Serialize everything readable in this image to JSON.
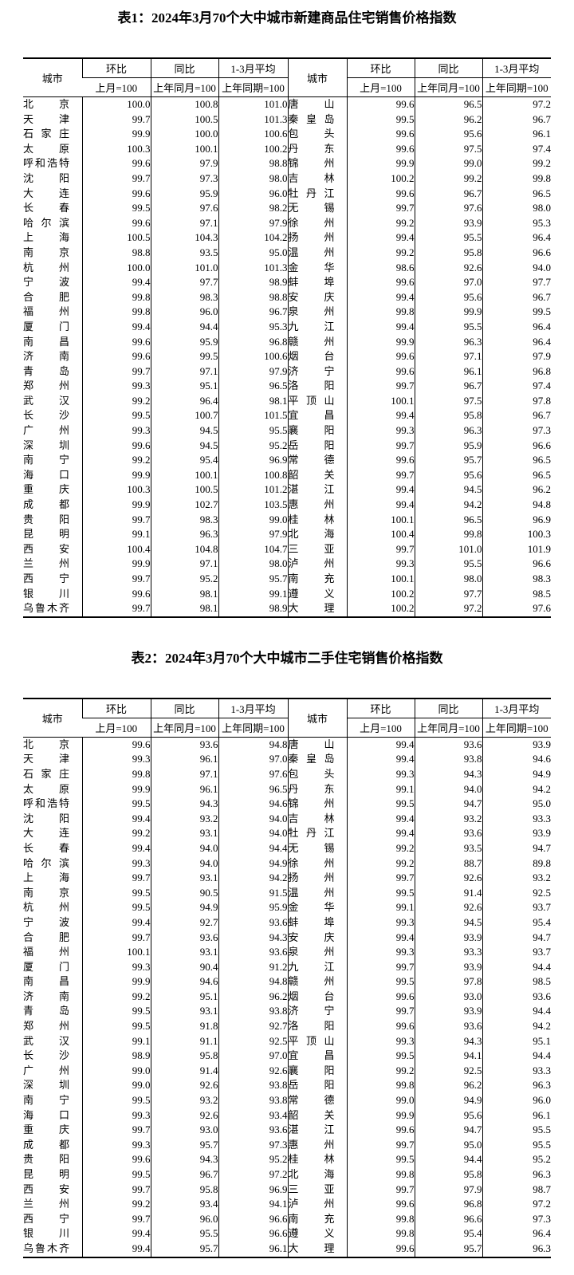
{
  "page": {
    "background_color": "#ffffff",
    "text_color": "#000000"
  },
  "tables": [
    {
      "title": "表1：2024年3月70个大中城市新建商品住宅销售价格指数",
      "header": {
        "city": "城市",
        "mom": "环比",
        "mom_base": "上月=100",
        "yoy": "同比",
        "yoy_base": "上年同月=100",
        "avg": "1-3月平均",
        "avg_base": "上年同期=100"
      },
      "rows": [
        [
          "北京",
          "100.0",
          "100.8",
          "101.0",
          "唐山",
          "99.6",
          "96.5",
          "97.2"
        ],
        [
          "天津",
          "99.7",
          "100.5",
          "101.3",
          "秦皇岛",
          "99.5",
          "96.2",
          "96.7"
        ],
        [
          "石家庄",
          "99.9",
          "100.0",
          "100.6",
          "包头",
          "99.6",
          "95.6",
          "96.1"
        ],
        [
          "太原",
          "100.3",
          "100.1",
          "100.2",
          "丹东",
          "99.6",
          "97.5",
          "97.4"
        ],
        [
          "呼和浩特",
          "99.6",
          "97.9",
          "98.8",
          "锦州",
          "99.9",
          "99.0",
          "99.2"
        ],
        [
          "沈阳",
          "99.7",
          "97.3",
          "98.0",
          "吉林",
          "100.2",
          "99.2",
          "99.8"
        ],
        [
          "大连",
          "99.6",
          "95.9",
          "96.0",
          "牡丹江",
          "99.6",
          "96.7",
          "96.5"
        ],
        [
          "长春",
          "99.5",
          "97.6",
          "98.2",
          "无锡",
          "99.7",
          "97.6",
          "98.0"
        ],
        [
          "哈尔滨",
          "99.6",
          "97.1",
          "97.9",
          "徐州",
          "99.2",
          "93.9",
          "95.3"
        ],
        [
          "上海",
          "100.5",
          "104.3",
          "104.2",
          "扬州",
          "99.4",
          "95.5",
          "96.4"
        ],
        [
          "南京",
          "98.8",
          "93.5",
          "95.0",
          "温州",
          "99.2",
          "95.8",
          "96.6"
        ],
        [
          "杭州",
          "100.0",
          "101.0",
          "101.3",
          "金华",
          "98.6",
          "92.6",
          "94.0"
        ],
        [
          "宁波",
          "99.4",
          "97.7",
          "98.9",
          "蚌埠",
          "99.6",
          "97.0",
          "97.7"
        ],
        [
          "合肥",
          "99.8",
          "98.3",
          "98.8",
          "安庆",
          "99.4",
          "95.6",
          "96.7"
        ],
        [
          "福州",
          "99.8",
          "96.0",
          "96.7",
          "泉州",
          "99.8",
          "99.9",
          "99.5"
        ],
        [
          "厦门",
          "99.4",
          "94.4",
          "95.3",
          "九江",
          "99.4",
          "95.5",
          "96.4"
        ],
        [
          "南昌",
          "99.6",
          "95.9",
          "96.8",
          "赣州",
          "99.9",
          "96.3",
          "96.4"
        ],
        [
          "济南",
          "99.6",
          "99.5",
          "100.6",
          "烟台",
          "99.6",
          "97.1",
          "97.9"
        ],
        [
          "青岛",
          "99.7",
          "97.1",
          "97.9",
          "济宁",
          "99.6",
          "96.1",
          "96.8"
        ],
        [
          "郑州",
          "99.3",
          "95.1",
          "96.5",
          "洛阳",
          "99.7",
          "96.7",
          "97.4"
        ],
        [
          "武汉",
          "99.2",
          "96.4",
          "98.1",
          "平顶山",
          "100.1",
          "97.5",
          "97.8"
        ],
        [
          "长沙",
          "99.5",
          "100.7",
          "101.5",
          "宜昌",
          "99.4",
          "95.8",
          "96.7"
        ],
        [
          "广州",
          "99.3",
          "94.5",
          "95.5",
          "襄阳",
          "99.3",
          "96.3",
          "97.3"
        ],
        [
          "深圳",
          "99.6",
          "94.5",
          "95.2",
          "岳阳",
          "99.7",
          "95.9",
          "96.6"
        ],
        [
          "南宁",
          "99.2",
          "95.4",
          "96.9",
          "常德",
          "99.6",
          "95.7",
          "96.5"
        ],
        [
          "海口",
          "99.9",
          "100.1",
          "100.8",
          "韶关",
          "99.7",
          "95.6",
          "96.5"
        ],
        [
          "重庆",
          "100.3",
          "100.5",
          "101.2",
          "湛江",
          "99.4",
          "94.5",
          "96.2"
        ],
        [
          "成都",
          "99.9",
          "102.7",
          "103.5",
          "惠州",
          "99.4",
          "94.2",
          "94.8"
        ],
        [
          "贵阳",
          "99.7",
          "98.3",
          "99.0",
          "桂林",
          "100.1",
          "96.5",
          "96.9"
        ],
        [
          "昆明",
          "99.1",
          "96.3",
          "97.9",
          "北海",
          "100.4",
          "99.8",
          "100.3"
        ],
        [
          "西安",
          "100.4",
          "104.8",
          "104.7",
          "三亚",
          "99.7",
          "101.0",
          "101.9"
        ],
        [
          "兰州",
          "99.9",
          "97.1",
          "98.0",
          "泸州",
          "99.3",
          "95.5",
          "96.6"
        ],
        [
          "西宁",
          "99.7",
          "95.2",
          "95.7",
          "南充",
          "100.1",
          "98.0",
          "98.3"
        ],
        [
          "银川",
          "99.6",
          "98.1",
          "99.1",
          "遵义",
          "100.2",
          "97.7",
          "98.5"
        ],
        [
          "乌鲁木齐",
          "99.7",
          "98.1",
          "98.9",
          "大理",
          "100.2",
          "97.2",
          "97.6"
        ]
      ]
    },
    {
      "title": "表2：2024年3月70个大中城市二手住宅销售价格指数",
      "header": {
        "city": "城市",
        "mom": "环比",
        "mom_base": "上月=100",
        "yoy": "同比",
        "yoy_base": "上年同月=100",
        "avg": "1-3月平均",
        "avg_base": "上年同期=100"
      },
      "rows": [
        [
          "北京",
          "99.6",
          "93.6",
          "94.8",
          "唐山",
          "99.4",
          "93.6",
          "93.9"
        ],
        [
          "天津",
          "99.3",
          "96.1",
          "97.0",
          "秦皇岛",
          "99.4",
          "93.8",
          "94.6"
        ],
        [
          "石家庄",
          "99.8",
          "97.1",
          "97.6",
          "包头",
          "99.3",
          "94.3",
          "94.9"
        ],
        [
          "太原",
          "99.9",
          "96.1",
          "96.5",
          "丹东",
          "99.1",
          "94.0",
          "94.2"
        ],
        [
          "呼和浩特",
          "99.5",
          "94.3",
          "94.6",
          "锦州",
          "99.5",
          "94.7",
          "95.0"
        ],
        [
          "沈阳",
          "99.4",
          "93.2",
          "94.0",
          "吉林",
          "99.4",
          "93.2",
          "93.3"
        ],
        [
          "大连",
          "99.2",
          "93.1",
          "94.0",
          "牡丹江",
          "99.4",
          "93.6",
          "93.9"
        ],
        [
          "长春",
          "99.4",
          "94.0",
          "94.4",
          "无锡",
          "99.2",
          "93.5",
          "94.7"
        ],
        [
          "哈尔滨",
          "99.3",
          "94.0",
          "94.9",
          "徐州",
          "99.2",
          "88.7",
          "89.8"
        ],
        [
          "上海",
          "99.7",
          "93.1",
          "94.2",
          "扬州",
          "99.7",
          "92.6",
          "93.2"
        ],
        [
          "南京",
          "99.5",
          "90.5",
          "91.5",
          "温州",
          "99.5",
          "91.4",
          "92.5"
        ],
        [
          "杭州",
          "99.5",
          "94.9",
          "95.9",
          "金华",
          "99.1",
          "92.6",
          "93.7"
        ],
        [
          "宁波",
          "99.4",
          "92.7",
          "93.6",
          "蚌埠",
          "99.3",
          "94.5",
          "95.4"
        ],
        [
          "合肥",
          "99.7",
          "93.6",
          "94.3",
          "安庆",
          "99.4",
          "93.9",
          "94.7"
        ],
        [
          "福州",
          "100.1",
          "93.1",
          "93.6",
          "泉州",
          "99.3",
          "93.3",
          "93.7"
        ],
        [
          "厦门",
          "99.3",
          "90.4",
          "91.2",
          "九江",
          "99.7",
          "93.9",
          "94.4"
        ],
        [
          "南昌",
          "99.9",
          "94.6",
          "94.8",
          "赣州",
          "99.5",
          "97.8",
          "98.5"
        ],
        [
          "济南",
          "99.2",
          "95.1",
          "96.2",
          "烟台",
          "99.6",
          "93.0",
          "93.6"
        ],
        [
          "青岛",
          "99.5",
          "93.1",
          "93.8",
          "济宁",
          "99.7",
          "93.9",
          "94.4"
        ],
        [
          "郑州",
          "99.5",
          "91.8",
          "92.7",
          "洛阳",
          "99.6",
          "93.6",
          "94.2"
        ],
        [
          "武汉",
          "99.1",
          "91.1",
          "92.5",
          "平顶山",
          "99.3",
          "94.3",
          "95.1"
        ],
        [
          "长沙",
          "98.9",
          "95.8",
          "97.0",
          "宜昌",
          "99.5",
          "94.1",
          "94.4"
        ],
        [
          "广州",
          "99.0",
          "91.4",
          "92.6",
          "襄阳",
          "99.2",
          "92.5",
          "93.3"
        ],
        [
          "深圳",
          "99.0",
          "92.6",
          "93.8",
          "岳阳",
          "99.8",
          "96.2",
          "96.3"
        ],
        [
          "南宁",
          "99.5",
          "93.2",
          "93.8",
          "常德",
          "99.0",
          "94.9",
          "96.0"
        ],
        [
          "海口",
          "99.3",
          "92.6",
          "93.4",
          "韶关",
          "99.9",
          "95.6",
          "96.1"
        ],
        [
          "重庆",
          "99.7",
          "93.0",
          "93.6",
          "湛江",
          "99.6",
          "94.7",
          "95.5"
        ],
        [
          "成都",
          "99.3",
          "95.7",
          "97.3",
          "惠州",
          "99.7",
          "95.0",
          "95.5"
        ],
        [
          "贵阳",
          "99.6",
          "94.3",
          "95.2",
          "桂林",
          "99.5",
          "94.4",
          "95.2"
        ],
        [
          "昆明",
          "99.5",
          "96.7",
          "97.2",
          "北海",
          "99.8",
          "95.8",
          "96.3"
        ],
        [
          "西安",
          "99.7",
          "95.8",
          "96.9",
          "三亚",
          "99.7",
          "97.9",
          "98.7"
        ],
        [
          "兰州",
          "99.2",
          "93.4",
          "94.1",
          "泸州",
          "99.6",
          "96.8",
          "97.2"
        ],
        [
          "西宁",
          "99.7",
          "96.0",
          "96.6",
          "南充",
          "99.8",
          "96.6",
          "97.3"
        ],
        [
          "银川",
          "99.4",
          "95.5",
          "96.6",
          "遵义",
          "99.8",
          "95.4",
          "96.4"
        ],
        [
          "乌鲁木齐",
          "99.4",
          "95.7",
          "96.1",
          "大理",
          "99.6",
          "95.7",
          "96.3"
        ]
      ]
    }
  ]
}
